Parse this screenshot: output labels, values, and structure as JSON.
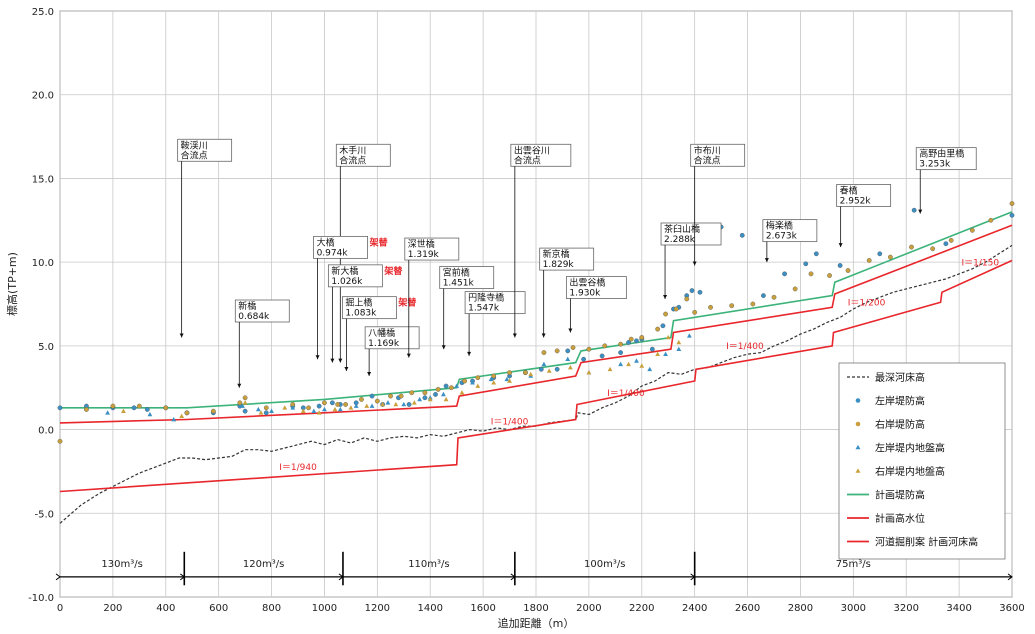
{
  "chart_data": {
    "type": "line",
    "xlabel": "追加距離（m）",
    "ylabel": "標高(TP+m)",
    "xlim": [
      0,
      3600
    ],
    "ylim": [
      -10,
      25
    ],
    "x_ticks": [
      0,
      200,
      400,
      600,
      800,
      1000,
      1200,
      1400,
      1600,
      1800,
      2000,
      2200,
      2400,
      2600,
      2800,
      3000,
      3200,
      3400,
      3600
    ],
    "y_ticks": [
      -10,
      -5,
      0,
      5,
      10,
      15,
      20,
      25
    ],
    "y_tick_labels": [
      "-10.0",
      "-5.0",
      "0.0",
      "5.0",
      "10.0",
      "15.0",
      "20.0",
      "25.0"
    ],
    "grid": true,
    "legend_position": "bottom-right",
    "colors": {
      "bed": "#333333",
      "left_bank": "#3a8fc4",
      "right_bank": "#c9a03c",
      "left_ground": "#3a8fc4",
      "right_ground": "#c9a03c",
      "levee": "#3cb37a",
      "water": "#e8262b",
      "excavation": "#e8262b"
    },
    "series": [
      {
        "key": "bed",
        "name": "最深河床高",
        "style": "dashed",
        "x": [
          0,
          80,
          150,
          200,
          250,
          300,
          350,
          400,
          450,
          500,
          550,
          600,
          650,
          700,
          750,
          800,
          850,
          900,
          950,
          1000,
          1050,
          1100,
          1150,
          1200,
          1250,
          1300,
          1350,
          1400,
          1450,
          1500,
          1550,
          1600,
          1650,
          1700,
          1750,
          1800,
          1850,
          1900,
          1950,
          1960,
          2000,
          2050,
          2100,
          2150,
          2200,
          2250,
          2300,
          2350,
          2400,
          2450,
          2500,
          2550,
          2600,
          2650,
          2700,
          2750,
          2800,
          2850,
          2900,
          2950,
          3000,
          3050,
          3100,
          3150,
          3200,
          3250,
          3300,
          3350,
          3400,
          3450,
          3500,
          3550,
          3600
        ],
        "y": [
          -5.6,
          -4.5,
          -3.8,
          -3.4,
          -3.0,
          -2.6,
          -2.3,
          -2.0,
          -1.7,
          -1.7,
          -1.8,
          -1.7,
          -1.6,
          -1.2,
          -1.2,
          -1.3,
          -1.1,
          -0.9,
          -0.7,
          -0.9,
          -0.6,
          -0.8,
          -0.5,
          -0.7,
          -0.5,
          -0.4,
          -0.5,
          -0.3,
          -0.4,
          -0.2,
          0.0,
          -0.1,
          0.1,
          0.0,
          0.2,
          0.2,
          0.4,
          0.5,
          0.6,
          1.0,
          0.9,
          1.3,
          1.6,
          2.0,
          2.6,
          2.9,
          3.4,
          3.3,
          3.6,
          3.7,
          4.0,
          4.3,
          4.5,
          4.6,
          5.0,
          5.3,
          5.7,
          6.0,
          6.4,
          6.7,
          7.2,
          7.6,
          7.9,
          8.2,
          8.4,
          8.6,
          8.8,
          9.0,
          9.3,
          9.6,
          10.0,
          10.5,
          11.0
        ]
      },
      {
        "key": "left_bank",
        "name": "左岸堤防高",
        "style": "marker-circle",
        "x": [
          0,
          100,
          200,
          280,
          330,
          400,
          480,
          580,
          680,
          700,
          780,
          880,
          920,
          980,
          1030,
          1060,
          1120,
          1180,
          1220,
          1280,
          1320,
          1380,
          1420,
          1460,
          1520,
          1560,
          1640,
          1700,
          1760,
          1820,
          1880,
          1920,
          1980,
          2050,
          2120,
          2150,
          2180,
          2200,
          2240,
          2280,
          2320,
          2340,
          2370,
          2390,
          2420,
          2500,
          2580,
          2660,
          2740,
          2820,
          2860,
          2950,
          3100,
          3230,
          3350,
          3600
        ],
        "y": [
          1.3,
          1.4,
          1.3,
          1.3,
          1.2,
          1.3,
          1.0,
          1.0,
          1.4,
          1.1,
          1.0,
          1.4,
          1.3,
          1.4,
          1.6,
          1.5,
          1.6,
          2.0,
          1.5,
          1.9,
          1.5,
          1.9,
          2.1,
          2.6,
          2.8,
          2.9,
          3.1,
          3.2,
          3.4,
          3.6,
          3.6,
          4.7,
          4.2,
          4.4,
          4.6,
          5.2,
          5.3,
          5.4,
          4.8,
          6.2,
          7.2,
          7.3,
          8.0,
          8.3,
          8.2,
          12.1,
          11.6,
          8.0,
          9.3,
          9.9,
          10.5,
          9.8,
          10.5,
          13.1,
          11.1,
          12.8
        ]
      },
      {
        "key": "right_bank",
        "name": "右岸堤防高",
        "style": "marker-circle",
        "x": [
          0,
          100,
          200,
          300,
          400,
          480,
          580,
          680,
          700,
          780,
          880,
          940,
          1000,
          1050,
          1080,
          1140,
          1200,
          1250,
          1290,
          1330,
          1380,
          1430,
          1480,
          1530,
          1580,
          1640,
          1700,
          1760,
          1830,
          1880,
          1940,
          2000,
          2060,
          2120,
          2160,
          2200,
          2260,
          2290,
          2330,
          2370,
          2400,
          2460,
          2540,
          2620,
          2700,
          2780,
          2840,
          2910,
          2980,
          3060,
          3140,
          3220,
          3300,
          3370,
          3450,
          3520,
          3600
        ],
        "y": [
          -0.7,
          1.2,
          1.4,
          1.4,
          1.3,
          1.0,
          1.1,
          1.6,
          1.9,
          1.3,
          1.5,
          1.3,
          1.6,
          1.5,
          1.5,
          1.8,
          1.7,
          2.0,
          2.0,
          2.2,
          2.2,
          2.4,
          2.5,
          2.9,
          3.1,
          3.2,
          3.4,
          3.4,
          4.6,
          4.7,
          4.9,
          4.8,
          5.0,
          5.1,
          5.4,
          5.5,
          6.0,
          6.9,
          7.2,
          7.8,
          7.0,
          7.3,
          7.4,
          7.5,
          7.9,
          8.4,
          9.3,
          9.2,
          9.5,
          10.1,
          10.3,
          10.9,
          10.8,
          11.3,
          11.9,
          12.5,
          13.5
        ]
      },
      {
        "key": "left_ground",
        "name": "左岸堤内地盤高",
        "style": "marker-triangle",
        "x": [
          180,
          340,
          430,
          690,
          750,
          800,
          880,
          960,
          1000,
          1060,
          1120,
          1180,
          1240,
          1300,
          1360,
          1400,
          1450,
          1500,
          1560,
          1630,
          1690,
          1780,
          1830,
          1920,
          2000,
          2120,
          2180,
          2230,
          2290,
          2340,
          2380
        ],
        "y": [
          1.0,
          0.9,
          0.6,
          1.4,
          1.2,
          1.1,
          1.3,
          1.1,
          1.2,
          1.2,
          1.4,
          1.4,
          1.6,
          1.5,
          1.8,
          1.9,
          2.1,
          2.6,
          2.8,
          3.0,
          3.0,
          3.2,
          3.9,
          4.2,
          3.4,
          3.9,
          4.1,
          3.6,
          4.5,
          4.8,
          5.6
        ]
      },
      {
        "key": "right_ground",
        "name": "右岸堤内地盤高",
        "style": "marker-triangle",
        "x": [
          240,
          460,
          700,
          760,
          850,
          920,
          980,
          1040,
          1100,
          1160,
          1220,
          1270,
          1340,
          1400,
          1460,
          1520,
          1580,
          1640,
          1700,
          1780,
          1850,
          1930,
          2000,
          2080,
          2150,
          2200,
          2260,
          2300,
          2340
        ],
        "y": [
          1.1,
          0.8,
          1.6,
          1.0,
          1.3,
          1.1,
          1.0,
          1.2,
          1.3,
          1.4,
          1.5,
          1.5,
          1.6,
          1.8,
          1.8,
          2.2,
          2.6,
          2.8,
          2.9,
          3.3,
          3.5,
          3.7,
          3.4,
          3.6,
          3.9,
          3.8,
          4.5,
          5.5,
          5.2
        ]
      },
      {
        "key": "levee",
        "name": "計画堤防高",
        "style": "solid",
        "x": [
          0,
          480,
          1000,
          1500,
          1510,
          1950,
          1970,
          2310,
          2320,
          2920,
          2930,
          3600
        ],
        "y": [
          1.3,
          1.3,
          1.8,
          2.5,
          3.0,
          4.0,
          4.7,
          5.5,
          6.5,
          8.0,
          8.8,
          13.0
        ]
      },
      {
        "key": "water",
        "name": "計画高水位",
        "style": "solid",
        "x": [
          0,
          480,
          1000,
          1500,
          1510,
          1950,
          1970,
          2310,
          2320,
          2920,
          2930,
          3600
        ],
        "y": [
          0.4,
          0.6,
          1.0,
          1.4,
          2.0,
          3.2,
          4.0,
          4.8,
          5.8,
          7.3,
          8.1,
          12.2
        ]
      },
      {
        "key": "excavation",
        "name": "河道掘削案 計画河床高",
        "style": "solid",
        "x": [
          0,
          1500,
          1505,
          1950,
          1955,
          2400,
          2405,
          2920,
          2925,
          3330,
          3335,
          3600
        ],
        "y": [
          -3.7,
          -2.1,
          -0.5,
          0.6,
          1.5,
          2.9,
          3.6,
          5.0,
          5.8,
          7.6,
          8.2,
          10.1
        ]
      }
    ],
    "grade_labels": [
      {
        "text": "I＝1/940",
        "x": 900,
        "y": -2.4
      },
      {
        "text": "I＝1/400",
        "x": 1700,
        "y": 0.3
      },
      {
        "text": "I＝1/400",
        "x": 2140,
        "y": 2.0
      },
      {
        "text": "I＝1/400",
        "x": 2590,
        "y": 4.8
      },
      {
        "text": "I＝1/200",
        "x": 3050,
        "y": 7.4
      },
      {
        "text": "I＝1/150",
        "x": 3480,
        "y": 9.8
      }
    ],
    "flow_sections": {
      "y": -8.8,
      "boundaries": [
        0,
        470,
        1070,
        1720,
        2400,
        3600
      ],
      "dividers": [
        470,
        1070,
        1720,
        2400
      ],
      "labels": [
        {
          "text": "130m³/s",
          "x": 235
        },
        {
          "text": "120m³/s",
          "x": 770
        },
        {
          "text": "110m³/s",
          "x": 1395
        },
        {
          "text": "100m³/s",
          "x": 2060
        },
        {
          "text": "75m³/s",
          "x": 3000
        }
      ]
    },
    "callouts": [
      {
        "name": "callout-kaikei",
        "x": 460,
        "y": 17.1,
        "lines": [
          "鞍渓川",
          "合流点"
        ],
        "line_x": 460,
        "line_to_y": 5.5,
        "box_x": 455,
        "box_y": 17.0
      },
      {
        "name": "callout-shinbashi",
        "x": 678,
        "y": 7.5,
        "lines": [
          "新橋",
          "0.684k"
        ],
        "line_x": 678,
        "line_to_y": 2.5
      },
      {
        "name": "callout-kitegawa",
        "x": 1060,
        "y": 16.8,
        "lines": [
          "木手川",
          "合流点"
        ],
        "line_x": 1060,
        "line_to_y": 4.0
      },
      {
        "name": "callout-ohashi",
        "x": 974,
        "y": 11.3,
        "lines": [
          "大橋",
          "0.974k"
        ],
        "badge": "架替",
        "line_x": 974,
        "line_to_y": 4.2
      },
      {
        "name": "callout-shin-ohashi",
        "x": 1030,
        "y": 9.6,
        "lines": [
          "新大橋",
          "1.026k"
        ],
        "badge": "架替",
        "line_x": 1030,
        "line_to_y": 4.0
      },
      {
        "name": "callout-kurikami",
        "x": 1083,
        "y": 7.7,
        "lines": [
          "掘上橋",
          "1.083k"
        ],
        "badge": "架替",
        "line_x": 1083,
        "line_to_y": 3.5
      },
      {
        "name": "callout-hachiman",
        "x": 1169,
        "y": 5.9,
        "lines": [
          "八幡橋",
          "1.169k"
        ],
        "line_x": 1169,
        "line_to_y": 3.2
      },
      {
        "name": "callout-fukaseibashi",
        "x": 1319,
        "y": 11.2,
        "lines": [
          "深世橋",
          "1.319k"
        ],
        "line_x": 1319,
        "line_to_y": 4.3
      },
      {
        "name": "callout-miyamae",
        "x": 1451,
        "y": 9.5,
        "lines": [
          "宮前橋",
          "1.451k"
        ],
        "line_x": 1451,
        "line_to_y": 4.8
      },
      {
        "name": "callout-enryuji",
        "x": 1547,
        "y": 8.0,
        "lines": [
          "円隆寺橋",
          "1.547k"
        ],
        "line_x": 1547,
        "line_to_y": 4.4
      },
      {
        "name": "callout-izumoyagawa",
        "x": 1720,
        "y": 16.8,
        "lines": [
          "出雲谷川",
          "合流点"
        ],
        "line_x": 1720,
        "line_to_y": 5.5
      },
      {
        "name": "callout-shinkyo",
        "x": 1829,
        "y": 10.6,
        "lines": [
          "新京橋",
          "1.829k"
        ],
        "line_x": 1829,
        "line_to_y": 5.5
      },
      {
        "name": "callout-izumoya",
        "x": 1930,
        "y": 8.9,
        "lines": [
          "出雲谷橋",
          "1.930k"
        ],
        "line_x": 1930,
        "line_to_y": 5.8
      },
      {
        "name": "callout-chausuyama",
        "x": 2288,
        "y": 12.1,
        "lines": [
          "茶臼山橋",
          "2.288k"
        ],
        "line_x": 2288,
        "line_to_y": 7.8
      },
      {
        "name": "callout-ichigogawa",
        "x": 2400,
        "y": 16.8,
        "lines": [
          "市布川",
          "合流点"
        ],
        "line_x": 2400,
        "line_to_y": 9.8
      },
      {
        "name": "callout-harubashi",
        "x": 2952,
        "y": 14.4,
        "lines": [
          "春橋",
          "2.952k"
        ],
        "line_x": 2952,
        "line_to_y": 10.9
      },
      {
        "name": "callout-baiganbashi",
        "x": 2673,
        "y": 12.3,
        "lines": [
          "梅楽橋",
          "2.673k"
        ],
        "line_x": 2673,
        "line_to_y": 10.0
      },
      {
        "name": "callout-takanoyuri",
        "x": 3253,
        "y": 16.6,
        "lines": [
          "高野由里橋",
          "3.253k"
        ],
        "line_x": 3253,
        "line_to_y": 12.9
      }
    ]
  }
}
